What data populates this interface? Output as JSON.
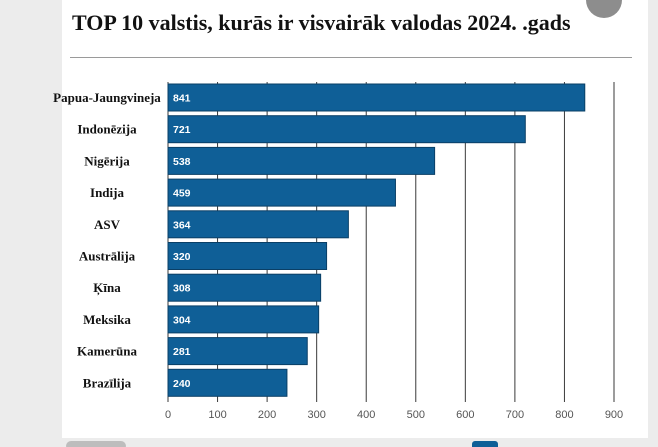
{
  "chart_data": {
    "type": "bar",
    "orientation": "horizontal",
    "title": "TOP 10 valstis, kurās ir visvairāk valodas 2024. .gads",
    "categories": [
      "Papua-Jaungvineja",
      "Indonēzija",
      "Nigērija",
      "Indija",
      "ASV",
      "Austrālija",
      "Ķīna",
      "Meksika",
      "Kamerūna",
      "Brazīlija"
    ],
    "values": [
      841,
      721,
      538,
      459,
      364,
      320,
      308,
      304,
      281,
      240
    ],
    "xticks": [
      "0",
      "100",
      "200",
      "300",
      "400",
      "500",
      "600",
      "700",
      "800",
      "900"
    ],
    "xlim": [
      0,
      900
    ],
    "grid": true,
    "bar_color": "#0f5f97"
  }
}
